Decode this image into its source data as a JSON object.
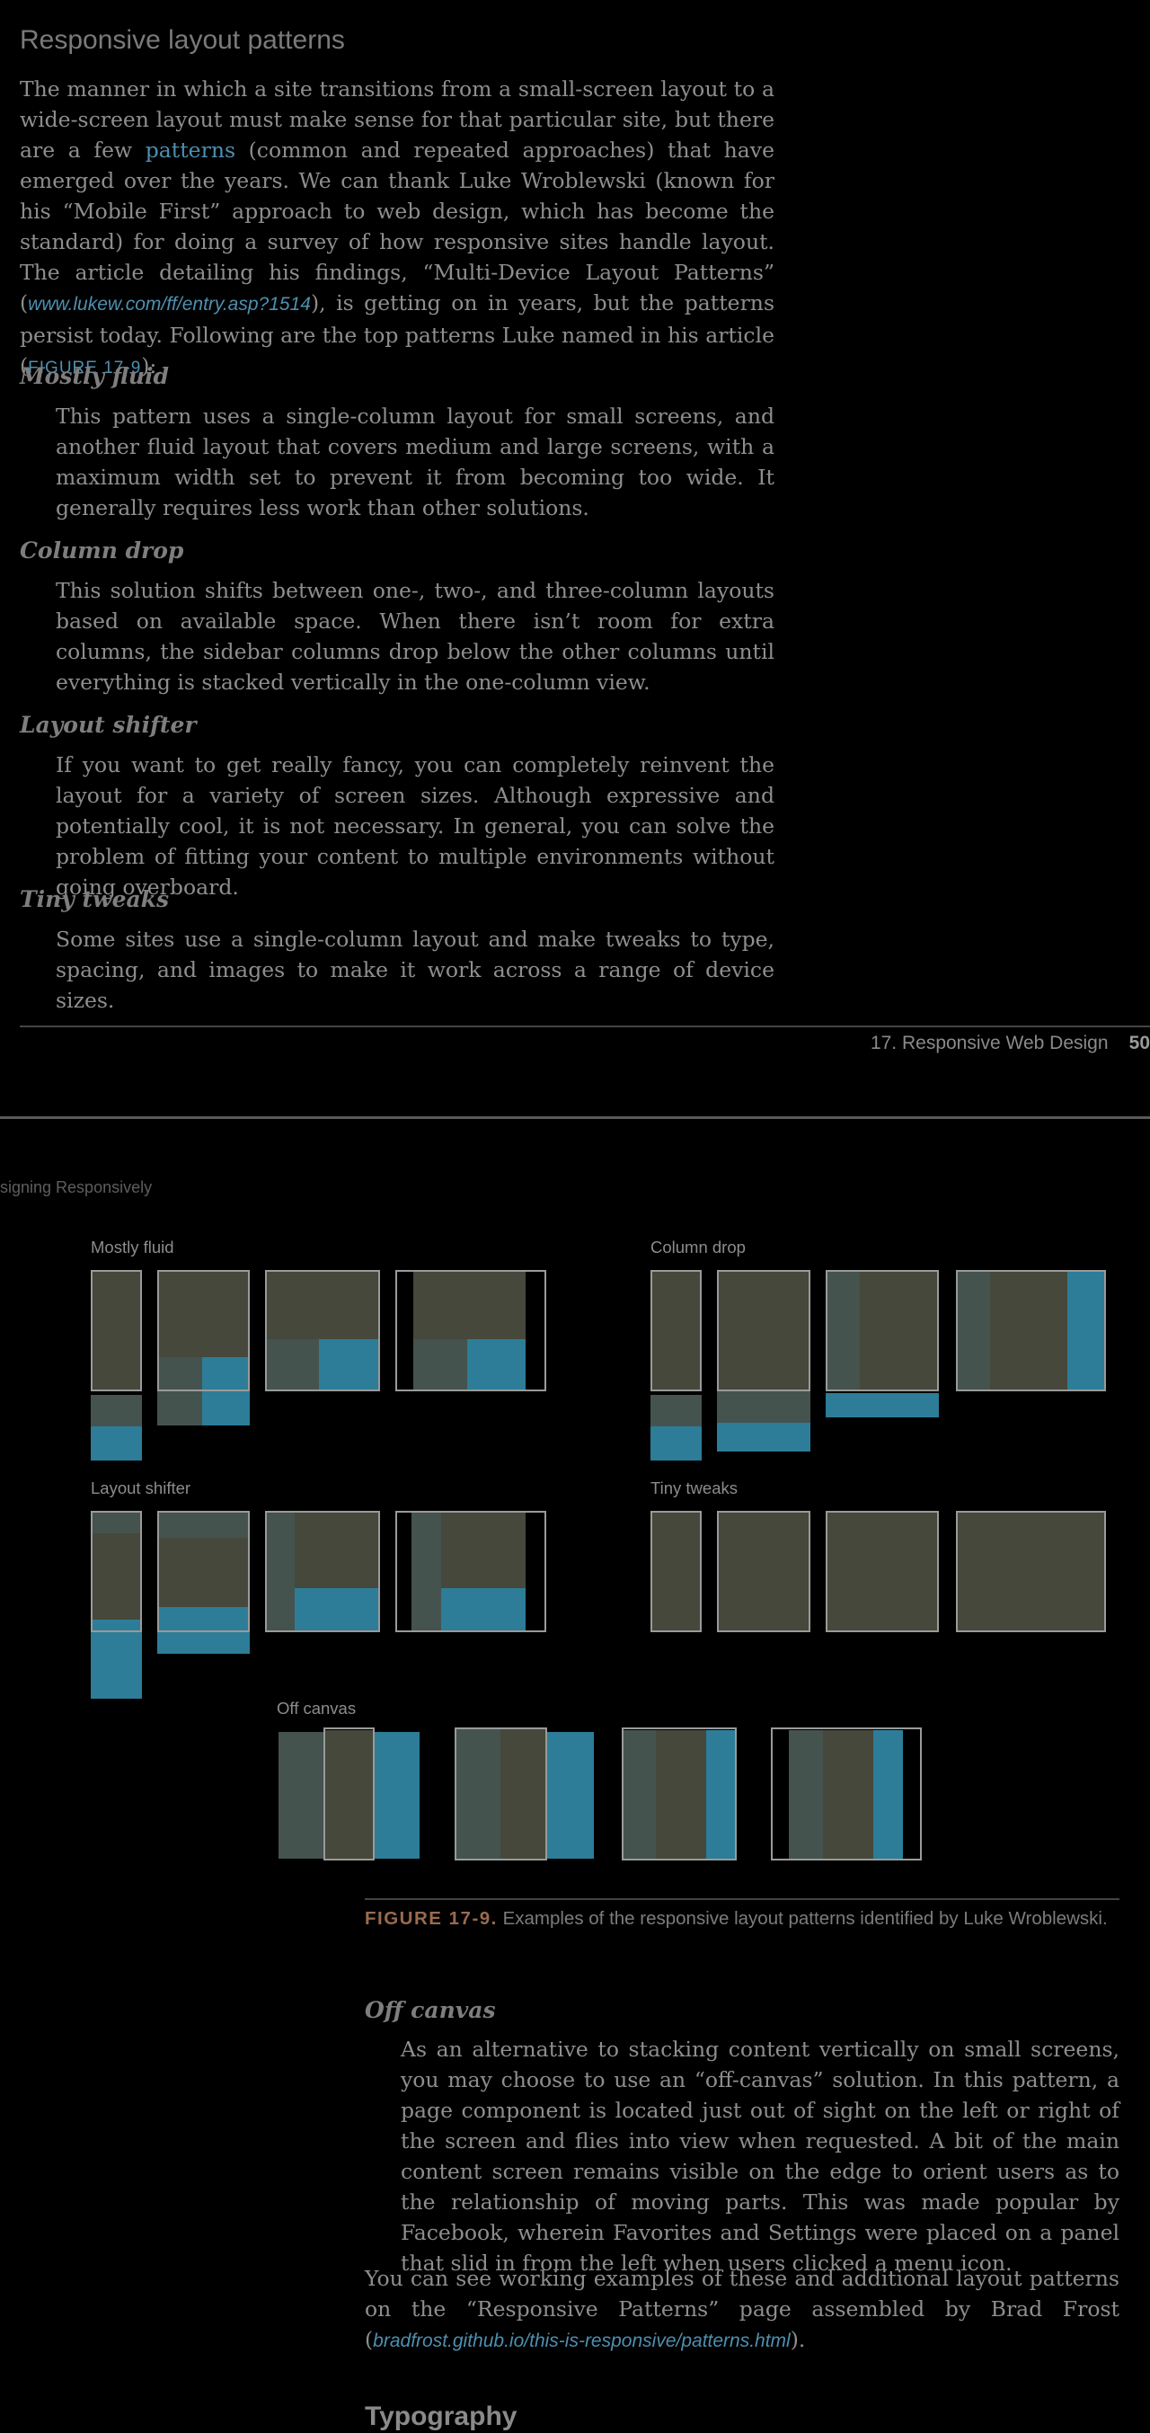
{
  "page1": {
    "heading": "Responsive layout patterns",
    "intro": {
      "t1": "The manner in which a site transitions from a small-screen layout to a wide-screen layout must make sense for that particular site, but there are a few ",
      "link": "patterns",
      "t2": " (common and repeated approaches) that have emerged over the years. We can thank Luke Wroblewski (known for his “Mobile First” approach to web design, which has become the standard) for doing a survey of how responsive sites handle layout. The article detailing his findings, “Multi-Device Layout Patterns” (",
      "url": "www.lukew.com/ff/entry.asp?1514",
      "t3": "), is getting on in years, but the patterns persist today. Following are the top patterns Luke named in his article (",
      "figref": "FIGURE 17-9",
      "t4": "):"
    },
    "patterns": [
      {
        "term": "Mostly fluid",
        "def": "This pattern uses a single-column layout for small screens, and another fluid layout that covers medium and large screens, with a maximum width set to prevent it from becoming too wide. It generally requires less work than other solutions."
      },
      {
        "term": "Column drop",
        "def": "This solution shifts between one-, two-, and three-column layouts based on available space. When there isn’t room for extra columns, the sidebar columns drop below the other columns until everything is stacked vertically in the one-column view."
      },
      {
        "term": "Layout shifter",
        "def": "If you want to get really fancy, you can completely reinvent the layout for a variety of screen sizes. Although expressive and potentially cool, it is not necessary. In general, you can solve the problem of fitting your content to multiple environments without going overboard."
      },
      {
        "term": "Tiny tweaks",
        "def": "Some sites use a single-column layout and make tweaks to type, spacing, and images to make it work across a range of device sizes."
      }
    ],
    "footer_chapter": "17. Responsive Web Design",
    "footer_page": "50"
  },
  "page2": {
    "running_head": "signing Responsively",
    "figure_labels": {
      "mostly_fluid": "Mostly fluid",
      "column_drop": "Column drop",
      "layout_shifter": "Layout shifter",
      "tiny_tweaks": "Tiny tweaks",
      "off_canvas": "Off canvas"
    },
    "caption_fig": "FIGURE 17-9.",
    "caption_text": "Examples of the responsive layout patterns identified by Luke Wroblewski.",
    "off_canvas_term": "Off canvas",
    "off_canvas_def": "As an alternative to stacking content vertically on small screens, you may choose to use an “off-canvas” solution. In this pattern, a page component is located just out of sight on the left or right of the screen and flies into view when requested. A bit of the main content screen remains visible on the edge to orient users as to the relationship of moving parts. This was made popular by Facebook, wherein Favorites and Settings were placed on a panel that slid in from the left when users clicked a menu icon.",
    "closing": {
      "t1": "You can see working examples of these and additional layout patterns on the “Responsive Patterns” page assembled by Brad Frost (",
      "url": "bradfrost.github.io/this-is-responsive/patterns.html",
      "t2": ")."
    },
    "next_heading": "Typography"
  },
  "colors": {
    "olive": "#45483a",
    "slate": "#45534f",
    "blue": "#2d7d98",
    "frame": "#9a9a9a",
    "link": "#4e8fb0",
    "figure_label": "#9a6b4e"
  }
}
